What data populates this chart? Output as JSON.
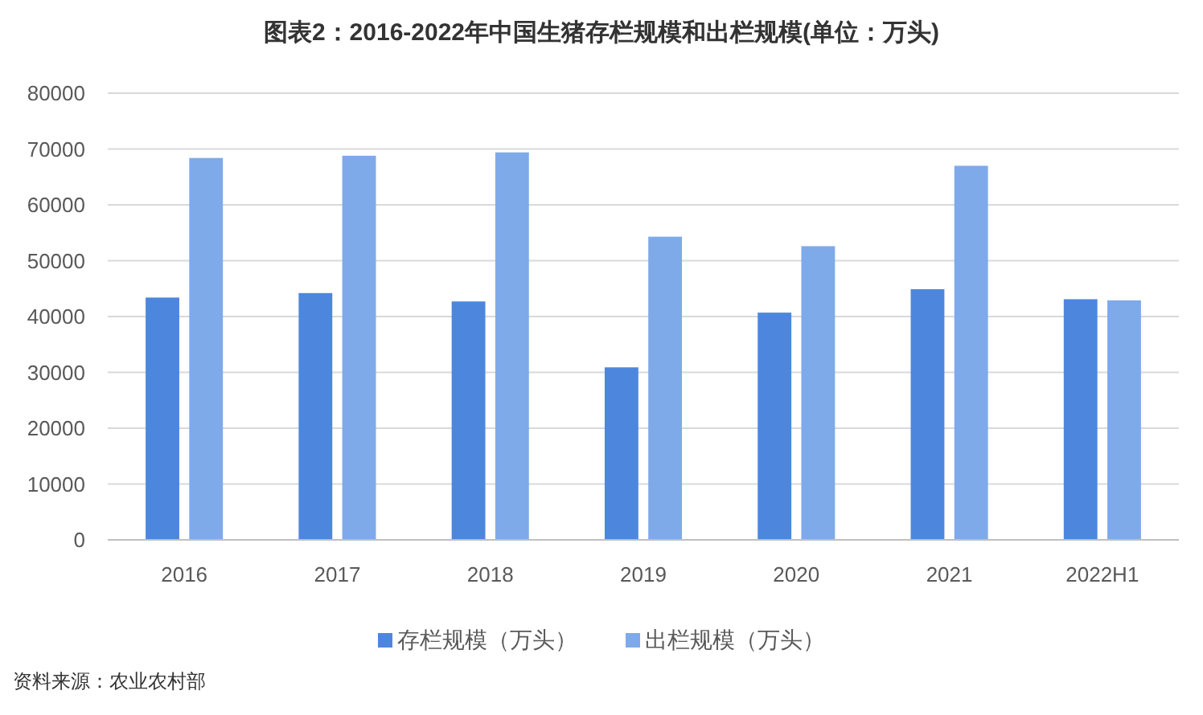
{
  "chart_data": {
    "type": "bar",
    "title": "图表2：2016-2022年中国生猪存栏规模和出栏规模(单位：万头)",
    "categories": [
      "2016",
      "2017",
      "2018",
      "2019",
      "2020",
      "2021",
      "2022H1"
    ],
    "series": [
      {
        "name": "存栏规模（万头）",
        "color": "#4d87dd",
        "values": [
          43400,
          44200,
          42700,
          30900,
          40700,
          44900,
          43100
        ]
      },
      {
        "name": "出栏规模（万头）",
        "color": "#7eaaea",
        "values": [
          68400,
          68800,
          69400,
          54300,
          52600,
          67000,
          42900
        ]
      }
    ],
    "ylim": [
      0,
      80000
    ],
    "yticks": [
      0,
      10000,
      20000,
      30000,
      40000,
      50000,
      60000,
      70000,
      80000
    ],
    "grid": "y",
    "legend": "bottom",
    "annotations": [
      "资料来源：农业农村部"
    ]
  }
}
